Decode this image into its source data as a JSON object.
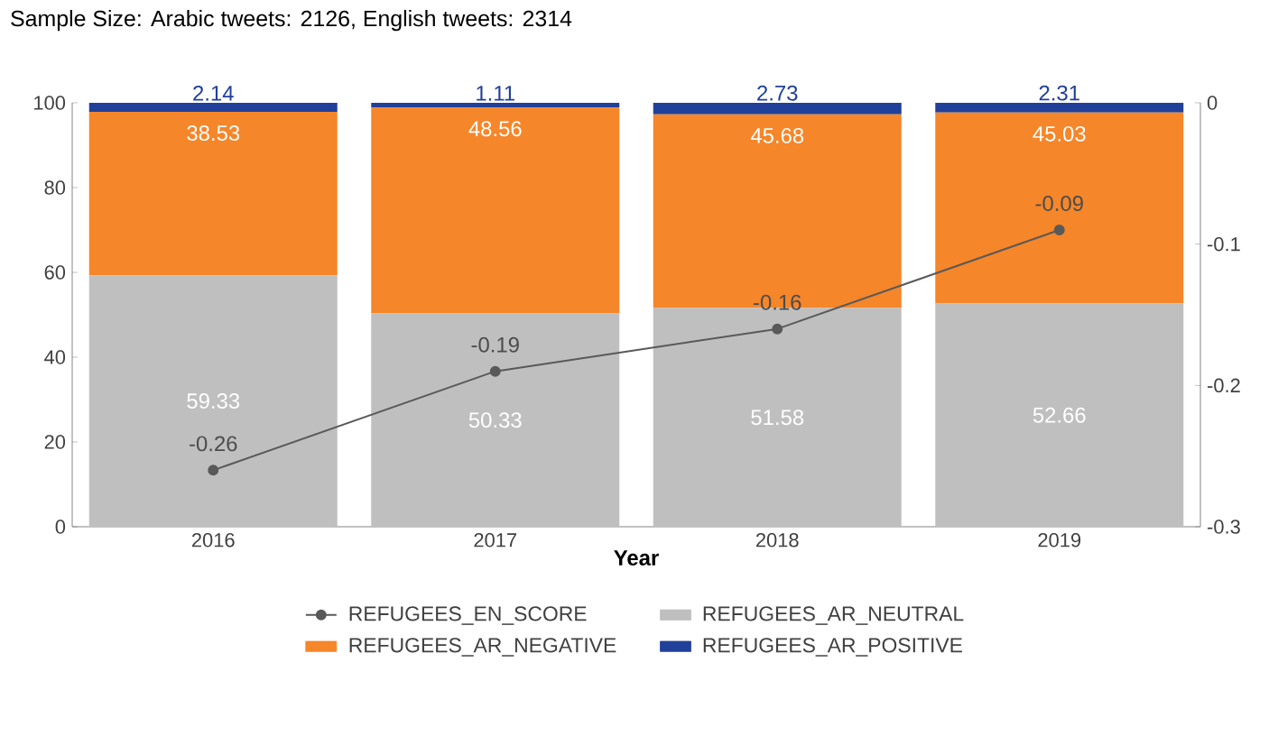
{
  "chart_data": {
    "type": "bar",
    "stacked": true,
    "title": "Sample Size: Arabic tweets: 2126, English tweets: 2314",
    "xlabel": "Year",
    "categories": [
      "2016",
      "2017",
      "2018",
      "2019"
    ],
    "series": [
      {
        "name": "REFUGEES_AR_NEUTRAL",
        "color": "#bfbfbf",
        "values": [
          59.33,
          50.33,
          51.58,
          52.66
        ]
      },
      {
        "name": "REFUGEES_AR_NEGATIVE",
        "color": "#f5862a",
        "values": [
          38.53,
          48.56,
          45.68,
          45.03
        ]
      },
      {
        "name": "REFUGEES_AR_POSITIVE",
        "color": "#21409a",
        "values": [
          2.14,
          1.11,
          2.73,
          2.31
        ]
      },
      {
        "name": "REFUGEES_EN_SCORE",
        "color": "#595959",
        "type": "line",
        "axis": "y2",
        "marker": "circle",
        "values": [
          -0.26,
          -0.19,
          -0.16,
          -0.09
        ]
      }
    ],
    "ylim": [
      0,
      100
    ],
    "yticks": [
      0,
      20,
      40,
      60,
      80,
      100
    ],
    "y2lim": [
      -0.3,
      0
    ],
    "y2ticks": [
      -0.3,
      -0.2,
      -0.1,
      0
    ],
    "data_labels": true,
    "legend": "bottom",
    "grid": false
  }
}
